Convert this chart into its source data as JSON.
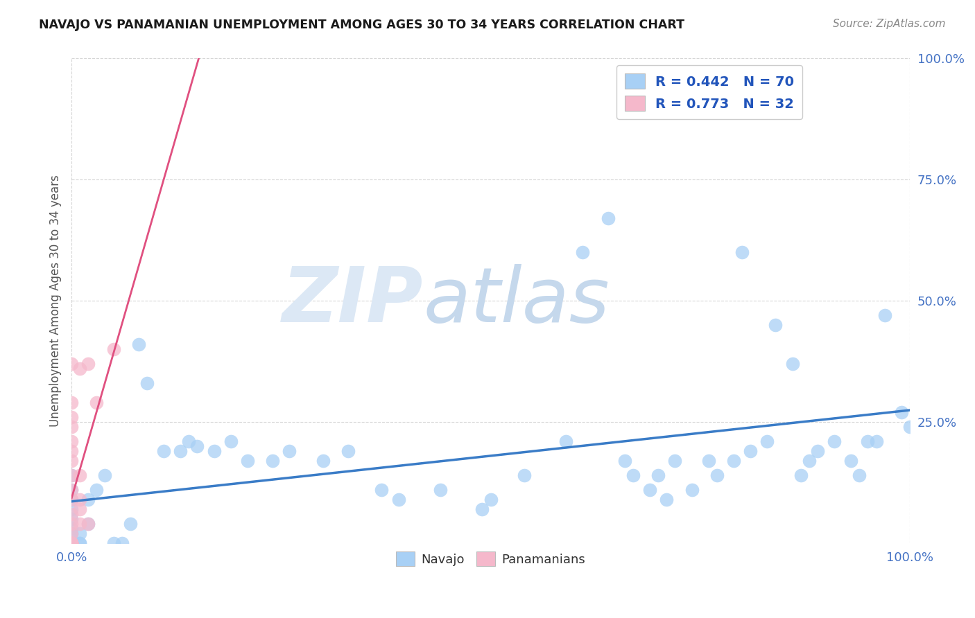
{
  "title": "NAVAJO VS PANAMANIAN UNEMPLOYMENT AMONG AGES 30 TO 34 YEARS CORRELATION CHART",
  "source_text": "Source: ZipAtlas.com",
  "ylabel": "Unemployment Among Ages 30 to 34 years",
  "xlim": [
    0.0,
    1.0
  ],
  "ylim": [
    0.0,
    1.0
  ],
  "navajo_R": 0.442,
  "navajo_N": 70,
  "panamanian_R": 0.773,
  "panamanian_N": 32,
  "navajo_color": "#a8d0f5",
  "panamanian_color": "#f5b8cb",
  "navajo_line_color": "#3a7cc7",
  "panamanian_line_color": "#e05080",
  "legend_color": "#2255bb",
  "navajo_x": [
    0.0,
    0.0,
    0.0,
    0.0,
    0.0,
    0.0,
    0.0,
    0.0,
    0.0,
    0.0,
    0.0,
    0.0,
    0.01,
    0.01,
    0.01,
    0.02,
    0.02,
    0.03,
    0.04,
    0.05,
    0.06,
    0.07,
    0.08,
    0.09,
    0.11,
    0.13,
    0.14,
    0.15,
    0.17,
    0.19,
    0.21,
    0.24,
    0.26,
    0.3,
    0.33,
    0.37,
    0.39,
    0.44,
    0.49,
    0.5,
    0.54,
    0.59,
    0.61,
    0.64,
    0.66,
    0.67,
    0.69,
    0.7,
    0.71,
    0.72,
    0.74,
    0.76,
    0.77,
    0.79,
    0.8,
    0.81,
    0.83,
    0.84,
    0.86,
    0.87,
    0.88,
    0.89,
    0.91,
    0.93,
    0.94,
    0.95,
    0.96,
    0.97,
    0.99,
    1.0
  ],
  "navajo_y": [
    0.0,
    0.0,
    0.0,
    0.0,
    0.0,
    0.02,
    0.03,
    0.05,
    0.07,
    0.09,
    0.11,
    0.14,
    0.0,
    0.0,
    0.02,
    0.04,
    0.09,
    0.11,
    0.14,
    0.0,
    0.0,
    0.04,
    0.41,
    0.33,
    0.19,
    0.19,
    0.21,
    0.2,
    0.19,
    0.21,
    0.17,
    0.17,
    0.19,
    0.17,
    0.19,
    0.11,
    0.09,
    0.11,
    0.07,
    0.09,
    0.14,
    0.21,
    0.6,
    0.67,
    0.17,
    0.14,
    0.11,
    0.14,
    0.09,
    0.17,
    0.11,
    0.17,
    0.14,
    0.17,
    0.6,
    0.19,
    0.21,
    0.45,
    0.37,
    0.14,
    0.17,
    0.19,
    0.21,
    0.17,
    0.14,
    0.21,
    0.21,
    0.47,
    0.27,
    0.24
  ],
  "panamanian_x": [
    0.0,
    0.0,
    0.0,
    0.0,
    0.0,
    0.0,
    0.0,
    0.0,
    0.0,
    0.0,
    0.0,
    0.0,
    0.0,
    0.0,
    0.0,
    0.0,
    0.0,
    0.0,
    0.0,
    0.0,
    0.0,
    0.0,
    0.0,
    0.01,
    0.01,
    0.01,
    0.01,
    0.01,
    0.02,
    0.02,
    0.03,
    0.05
  ],
  "panamanian_y": [
    0.0,
    0.0,
    0.0,
    0.0,
    0.0,
    0.0,
    0.0,
    0.0,
    0.0,
    0.0,
    0.02,
    0.04,
    0.06,
    0.09,
    0.11,
    0.14,
    0.17,
    0.19,
    0.21,
    0.24,
    0.26,
    0.29,
    0.37,
    0.04,
    0.07,
    0.09,
    0.14,
    0.36,
    0.04,
    0.37,
    0.29,
    0.4
  ],
  "background_color": "#ffffff",
  "grid_color": "#cccccc"
}
